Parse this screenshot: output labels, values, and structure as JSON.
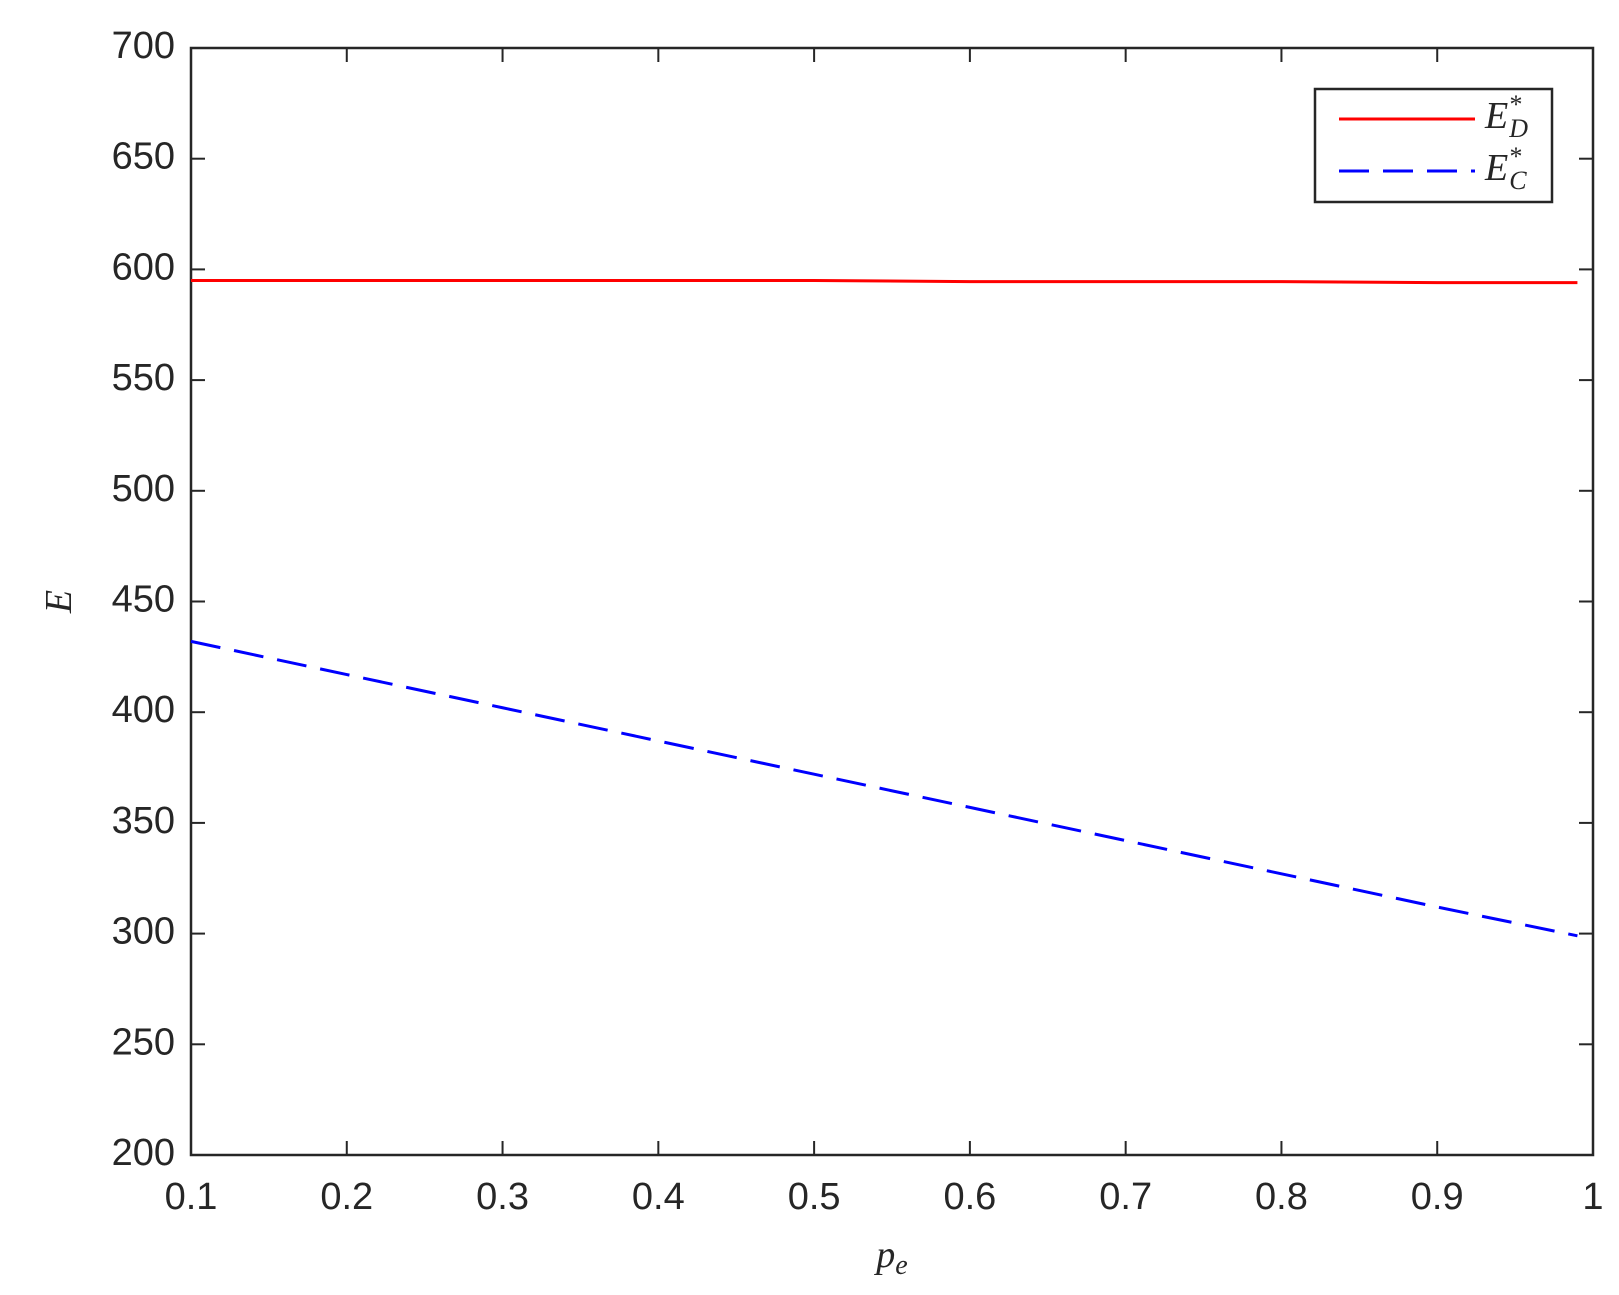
{
  "chart_data": {
    "type": "line",
    "x": [
      0.1,
      0.2,
      0.3,
      0.4,
      0.5,
      0.6,
      0.7,
      0.8,
      0.9,
      0.99
    ],
    "series": [
      {
        "name": "E*D",
        "color": "#ff0000",
        "dash": "solid",
        "values": [
          595,
          595,
          595,
          595,
          595,
          594.5,
          594.5,
          594.5,
          594,
          594
        ]
      },
      {
        "name": "E*C",
        "color": "#0000ff",
        "dash": "dashed",
        "values": [
          432,
          417,
          402,
          387,
          372,
          357,
          342,
          327,
          312,
          299
        ]
      }
    ],
    "xlabel": "pe",
    "ylabel": "E",
    "xlim": [
      0.1,
      1
    ],
    "ylim": [
      200,
      700
    ],
    "xticks": [
      0.1,
      0.2,
      0.3,
      0.4,
      0.5,
      0.6,
      0.7,
      0.8,
      0.9,
      1
    ],
    "yticks": [
      200,
      250,
      300,
      350,
      400,
      450,
      500,
      550,
      600,
      650,
      700
    ],
    "legend": "top-right",
    "grid": false
  }
}
